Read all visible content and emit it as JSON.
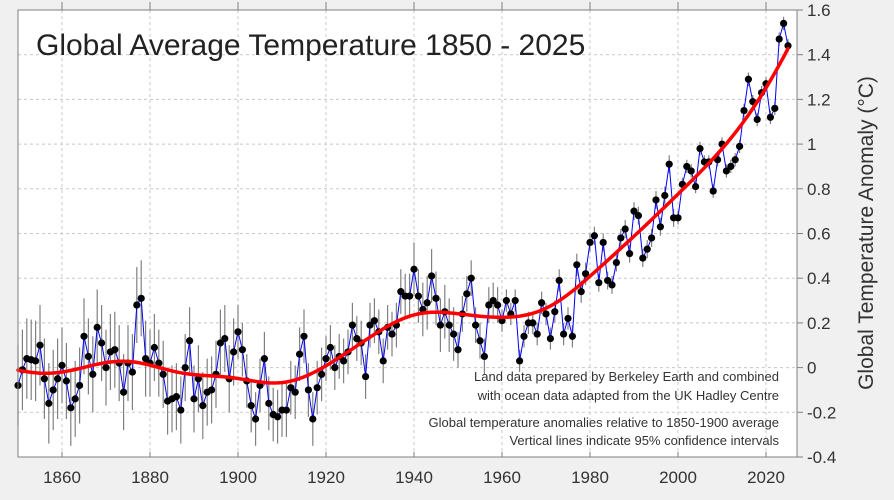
{
  "chart_data": {
    "type": "line",
    "title": "Global Average Temperature 1850 - 2025",
    "xlabel": "",
    "ylabel": "Global  Temperature  Anomaly  (°C)",
    "xlim": [
      1850,
      2025
    ],
    "ylim": [
      -0.4,
      1.6
    ],
    "xticks": [
      1860,
      1880,
      1900,
      1920,
      1940,
      1960,
      1980,
      2000,
      2020
    ],
    "yticks": [
      -0.4,
      -0.2,
      0,
      0.2,
      0.4,
      0.6,
      0.8,
      1,
      1.2,
      1.4,
      1.6
    ],
    "ytick_labels": [
      "-0.4",
      "-0.2",
      "0",
      "0.2",
      "0.4",
      "0.6",
      "0.8",
      "1",
      "1.2",
      "1.4",
      "1.6"
    ],
    "grid": true,
    "y_axis_side": "right",
    "colors": {
      "annual_line": "#0000ff",
      "points": "#000000",
      "smoothed": "#ff0000",
      "error_bars": "#808080"
    },
    "x_start": 1850,
    "annual_anomaly": [
      -0.08,
      -0.01,
      0.04,
      0.035,
      0.03,
      0.1,
      -0.05,
      -0.16,
      -0.1,
      -0.05,
      0.01,
      -0.06,
      -0.18,
      -0.14,
      -0.08,
      0.14,
      0.05,
      -0.03,
      0.18,
      0.11,
      0.0,
      0.07,
      0.08,
      0.02,
      -0.11,
      0.02,
      -0.02,
      0.28,
      0.31,
      0.04,
      0.02,
      0.09,
      0.02,
      -0.03,
      -0.15,
      -0.14,
      -0.13,
      -0.19,
      0.0,
      0.12,
      -0.14,
      -0.05,
      -0.17,
      -0.11,
      -0.1,
      -0.03,
      0.11,
      0.13,
      -0.05,
      0.07,
      0.16,
      0.08,
      -0.06,
      -0.17,
      -0.23,
      -0.08,
      0.04,
      -0.16,
      -0.21,
      -0.22,
      -0.19,
      -0.19,
      -0.09,
      -0.11,
      0.06,
      0.14,
      -0.1,
      -0.23,
      -0.09,
      -0.03,
      0.04,
      0.09,
      0.0,
      0.05,
      0.03,
      0.07,
      0.19,
      0.13,
      0.11,
      -0.04,
      0.19,
      0.21,
      0.16,
      0.03,
      0.18,
      0.15,
      0.19,
      0.34,
      0.32,
      0.32,
      0.44,
      0.32,
      0.26,
      0.29,
      0.41,
      0.31,
      0.19,
      0.25,
      0.19,
      0.15,
      0.08,
      0.24,
      0.33,
      0.4,
      0.19,
      0.12,
      0.05,
      0.28,
      0.3,
      0.28,
      0.21,
      0.3,
      0.24,
      0.3,
      0.03,
      0.14,
      0.2,
      0.2,
      0.15,
      0.29,
      0.24,
      0.13,
      0.25,
      0.39,
      0.15,
      0.22,
      0.14,
      0.46,
      0.34,
      0.42,
      0.56,
      0.59,
      0.38,
      0.56,
      0.39,
      0.37,
      0.47,
      0.58,
      0.62,
      0.51,
      0.7,
      0.68,
      0.49,
      0.53,
      0.58,
      0.75,
      0.63,
      0.77,
      0.91,
      0.67,
      0.67,
      0.82,
      0.9,
      0.88,
      0.81,
      0.98,
      0.92,
      0.92,
      0.79,
      0.93,
      1.0,
      0.88,
      0.9,
      0.93,
      0.99,
      1.15,
      1.29,
      1.19,
      1.11,
      1.23,
      1.27,
      1.12,
      1.16,
      1.47,
      1.54,
      1.44
    ],
    "uncertainty_95": [
      0.18,
      0.18,
      0.18,
      0.18,
      0.18,
      0.18,
      0.18,
      0.18,
      0.18,
      0.18,
      0.17,
      0.17,
      0.17,
      0.17,
      0.17,
      0.17,
      0.17,
      0.17,
      0.17,
      0.17,
      0.17,
      0.17,
      0.17,
      0.17,
      0.17,
      0.17,
      0.17,
      0.17,
      0.17,
      0.17,
      0.15,
      0.15,
      0.15,
      0.15,
      0.15,
      0.15,
      0.15,
      0.15,
      0.15,
      0.15,
      0.15,
      0.15,
      0.15,
      0.15,
      0.15,
      0.15,
      0.15,
      0.15,
      0.15,
      0.15,
      0.12,
      0.12,
      0.12,
      0.12,
      0.12,
      0.12,
      0.12,
      0.12,
      0.12,
      0.12,
      0.12,
      0.12,
      0.12,
      0.12,
      0.12,
      0.12,
      0.12,
      0.12,
      0.12,
      0.12,
      0.1,
      0.1,
      0.1,
      0.1,
      0.1,
      0.1,
      0.1,
      0.1,
      0.1,
      0.1,
      0.1,
      0.1,
      0.1,
      0.1,
      0.1,
      0.1,
      0.1,
      0.1,
      0.1,
      0.1,
      0.12,
      0.12,
      0.12,
      0.12,
      0.12,
      0.12,
      0.12,
      0.12,
      0.12,
      0.12,
      0.08,
      0.08,
      0.08,
      0.08,
      0.08,
      0.08,
      0.08,
      0.08,
      0.08,
      0.08,
      0.05,
      0.05,
      0.05,
      0.05,
      0.05,
      0.05,
      0.05,
      0.05,
      0.05,
      0.05,
      0.05,
      0.05,
      0.05,
      0.05,
      0.05,
      0.05,
      0.05,
      0.05,
      0.05,
      0.05,
      0.04,
      0.04,
      0.04,
      0.04,
      0.04,
      0.04,
      0.04,
      0.04,
      0.04,
      0.04,
      0.04,
      0.04,
      0.04,
      0.04,
      0.04,
      0.04,
      0.04,
      0.04,
      0.04,
      0.04,
      0.03,
      0.03,
      0.03,
      0.03,
      0.03,
      0.03,
      0.03,
      0.03,
      0.03,
      0.03,
      0.03,
      0.03,
      0.03,
      0.03,
      0.03,
      0.03,
      0.03,
      0.03,
      0.03,
      0.03,
      0.03,
      0.03,
      0.03,
      0.03,
      0.03,
      0.03
    ],
    "annotations": [
      "Land data prepared by Berkeley Earth and combined",
      "with ocean data adapted from the UK Hadley Centre",
      "Global temperature anomalies relative to 1850-1900 average",
      "Vertical lines indicate 95% confidence intervals"
    ]
  }
}
